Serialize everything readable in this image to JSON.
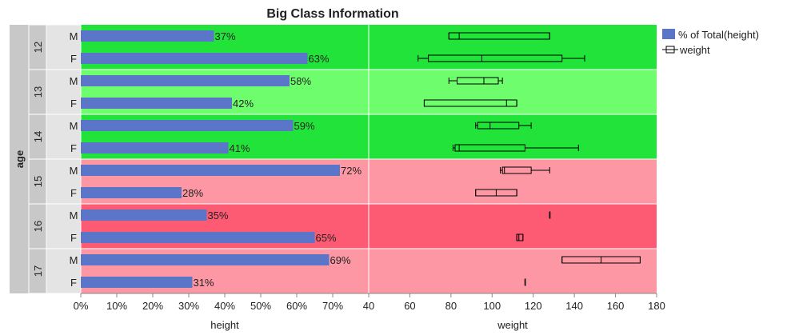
{
  "chart_data": {
    "type": "bar",
    "title": "Big Class Information",
    "group_label": "age",
    "legend": {
      "position": "right",
      "entries": [
        {
          "name": "% of Total(height)",
          "swatch": "bar"
        },
        {
          "name": "weight",
          "swatch": "box"
        }
      ]
    },
    "left_panel": {
      "series": "% of Total(height)",
      "xlabel": "height",
      "xlim": [
        0,
        0.8
      ],
      "ticks": [
        "0%",
        "10%",
        "20%",
        "30%",
        "40%",
        "50%",
        "60%",
        "70%"
      ]
    },
    "right_panel": {
      "series": "weight",
      "xlabel": "weight",
      "xlim": [
        40,
        180
      ],
      "ticks": [
        "40",
        "60",
        "80",
        "100",
        "120",
        "140",
        "160",
        "180"
      ]
    },
    "groups": [
      {
        "age": "12",
        "band": "green",
        "rows": [
          {
            "sex": "M",
            "value": 0.37,
            "label": "37%",
            "box": {
              "min": 79,
              "q1": 79,
              "median": 84,
              "q3": 128,
              "max": 128
            }
          },
          {
            "sex": "F",
            "value": 0.63,
            "label": "63%",
            "box": {
              "min": 64,
              "q1": 69,
              "median": 95,
              "q3": 134,
              "max": 145
            }
          }
        ]
      },
      {
        "age": "13",
        "band": "light-green",
        "rows": [
          {
            "sex": "M",
            "value": 0.58,
            "label": "58%",
            "box": {
              "min": 79,
              "q1": 83,
              "median": 96,
              "q3": 103,
              "max": 105
            }
          },
          {
            "sex": "F",
            "value": 0.42,
            "label": "42%",
            "box": {
              "min": 67,
              "q1": 67,
              "median": 107,
              "q3": 112,
              "max": 112
            }
          }
        ]
      },
      {
        "age": "14",
        "band": "green",
        "rows": [
          {
            "sex": "M",
            "value": 0.59,
            "label": "59%",
            "box": {
              "min": 92,
              "q1": 93,
              "median": 99,
              "q3": 113,
              "max": 119
            }
          },
          {
            "sex": "F",
            "value": 0.41,
            "label": "41%",
            "box": {
              "min": 81,
              "q1": 82,
              "median": 84,
              "q3": 116,
              "max": 142
            }
          }
        ]
      },
      {
        "age": "15",
        "band": "light-red",
        "rows": [
          {
            "sex": "M",
            "value": 0.72,
            "label": "72%",
            "box": {
              "min": 104,
              "q1": 105,
              "median": 106,
              "q3": 119,
              "max": 128
            }
          },
          {
            "sex": "F",
            "value": 0.28,
            "label": "28%",
            "box": {
              "min": 92,
              "q1": 92,
              "median": 102,
              "q3": 112,
              "max": 112
            }
          }
        ]
      },
      {
        "age": "16",
        "band": "red",
        "rows": [
          {
            "sex": "M",
            "value": 0.35,
            "label": "35%",
            "box": {
              "min": 128,
              "q1": 128,
              "median": 128,
              "q3": 128,
              "max": 128
            }
          },
          {
            "sex": "F",
            "value": 0.65,
            "label": "65%",
            "box": {
              "min": 112,
              "q1": 112,
              "median": 113,
              "q3": 115,
              "max": 115
            }
          }
        ]
      },
      {
        "age": "17",
        "band": "light-red",
        "rows": [
          {
            "sex": "M",
            "value": 0.69,
            "label": "69%",
            "box": {
              "min": 134,
              "q1": 134,
              "median": 153,
              "q3": 172,
              "max": 172
            }
          },
          {
            "sex": "F",
            "value": 0.31,
            "label": "31%",
            "box": {
              "min": 116,
              "q1": 116,
              "median": 116,
              "q3": 116,
              "max": 116
            }
          }
        ]
      }
    ],
    "colors": {
      "bar": "#5b75c9",
      "green": "#22e33a",
      "light-green": "#6dfd6d",
      "red": "#fd5b73",
      "light-red": "#fd97a4",
      "group_strip": "#c8c8c8",
      "sex_strip": "#e4e4e4"
    }
  }
}
